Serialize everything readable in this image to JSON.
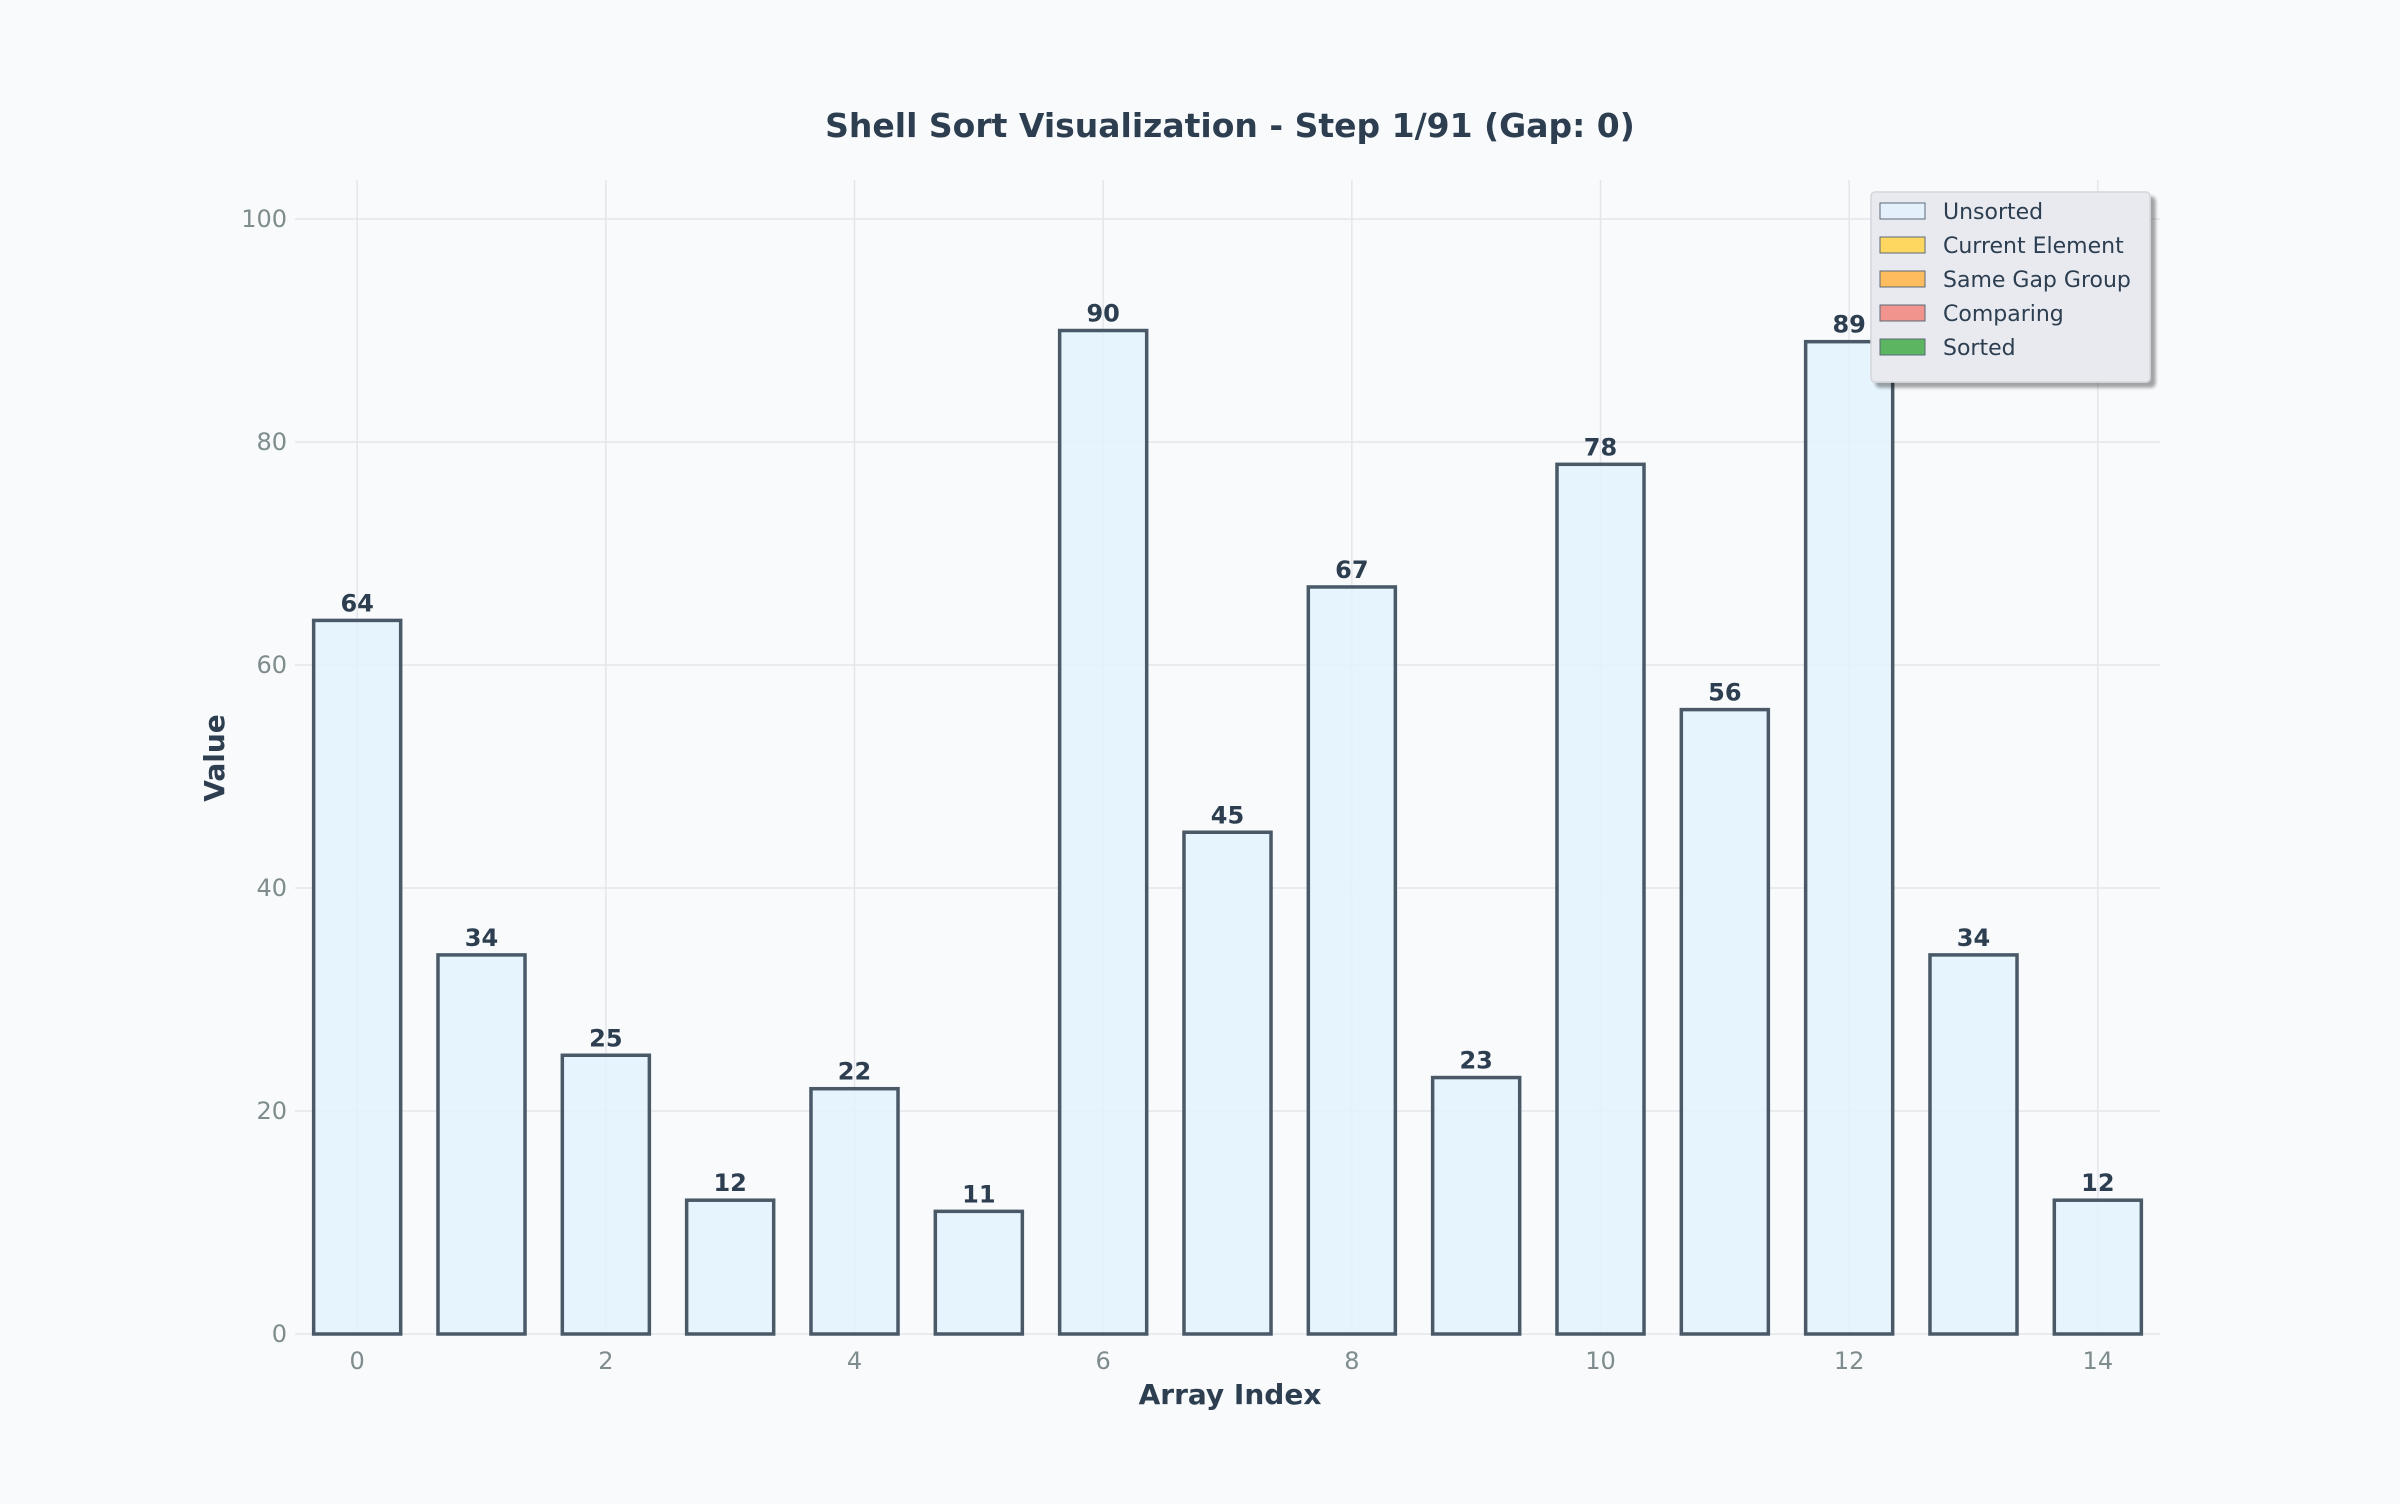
{
  "chart_data": {
    "type": "bar",
    "title": "Shell Sort Visualization - Step 1/91 (Gap: 0)",
    "xlabel": "Array Index",
    "ylabel": "Value",
    "categories": [
      0,
      1,
      2,
      3,
      4,
      5,
      6,
      7,
      8,
      9,
      10,
      11,
      12,
      13,
      14
    ],
    "values": [
      64,
      34,
      25,
      12,
      22,
      11,
      90,
      45,
      67,
      23,
      78,
      56,
      89,
      34,
      12
    ],
    "bar_states": [
      "Unsorted",
      "Unsorted",
      "Unsorted",
      "Unsorted",
      "Unsorted",
      "Unsorted",
      "Unsorted",
      "Unsorted",
      "Unsorted",
      "Unsorted",
      "Unsorted",
      "Unsorted",
      "Unsorted",
      "Unsorted",
      "Unsorted"
    ],
    "ylim": [
      0,
      103.5
    ],
    "xlim": [
      -0.5,
      14.5
    ],
    "yticks": [
      0,
      20,
      40,
      60,
      80,
      100
    ],
    "xticks": [
      0,
      2,
      4,
      6,
      8,
      10,
      12,
      14
    ],
    "grid": true,
    "legend_position": "top-right",
    "legend": [
      {
        "label": "Unsorted",
        "color": "#e3f2fd"
      },
      {
        "label": "Current Element",
        "color": "#ffd54f"
      },
      {
        "label": "Same Gap Group",
        "color": "#ffb74d"
      },
      {
        "label": "Comparing",
        "color": "#f28b82"
      },
      {
        "label": "Sorted",
        "color": "#4caf50"
      }
    ],
    "bar_edge_color": "#4a5968"
  }
}
